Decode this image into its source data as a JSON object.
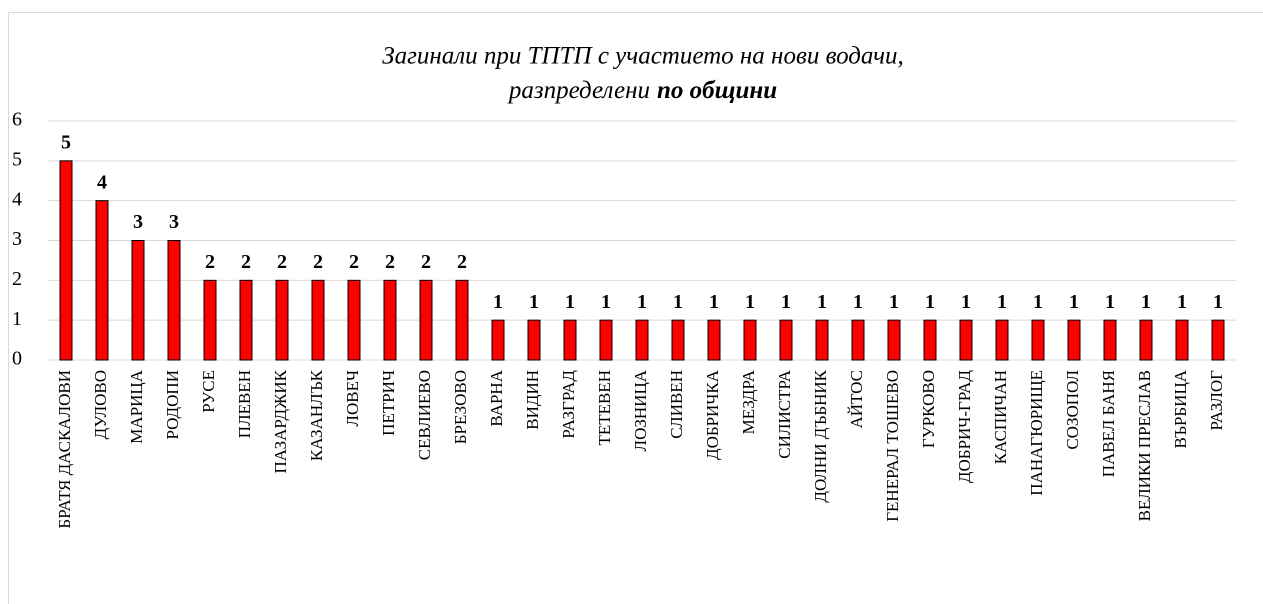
{
  "chart_data": {
    "type": "bar",
    "title": [
      "Загинали при ТПТП с участието на нови водачи,",
      "разпределени",
      "по общини"
    ],
    "categories": [
      "БРАТЯ ДАСКАЛОВИ",
      "ДУЛОВО",
      "МАРИЦА",
      "РОДОПИ",
      "РУСЕ",
      "ПЛЕВЕН",
      "ПАЗАРДЖИК",
      "КАЗАНЛЪК",
      "ЛОВЕЧ",
      "ПЕТРИЧ",
      "СЕВЛИЕВО",
      "БРЕЗОВО",
      "ВАРНА",
      "ВИДИН",
      "РАЗГРАД",
      "ТЕТЕВЕН",
      "ЛОЗНИЦА",
      "СЛИВЕН",
      "ДОБРИЧКА",
      "МЕЗДРА",
      "СИЛИСТРА",
      "ДОЛНИ ДЪБНИК",
      "АЙТОС",
      "ГЕНЕРАЛ ТОШЕВО",
      "ГУРКОВО",
      "ДОБРИЧ-ГРАД",
      "КАСПИЧАН",
      "ПАНАГЮРИЩЕ",
      "СОЗОПОЛ",
      "ПАВЕЛ БАНЯ",
      "ВЕЛИКИ ПРЕСЛАВ",
      "ВЪРБИЦА",
      "РАЗЛОГ"
    ],
    "values": [
      5,
      4,
      3,
      3,
      2,
      2,
      2,
      2,
      2,
      2,
      2,
      2,
      1,
      1,
      1,
      1,
      1,
      1,
      1,
      1,
      1,
      1,
      1,
      1,
      1,
      1,
      1,
      1,
      1,
      1,
      1,
      1,
      1
    ],
    "color": "#ff0000",
    "ylim": [
      0,
      6
    ],
    "yticks": [
      0,
      1,
      2,
      3,
      4,
      5,
      6
    ],
    "grid": true
  }
}
